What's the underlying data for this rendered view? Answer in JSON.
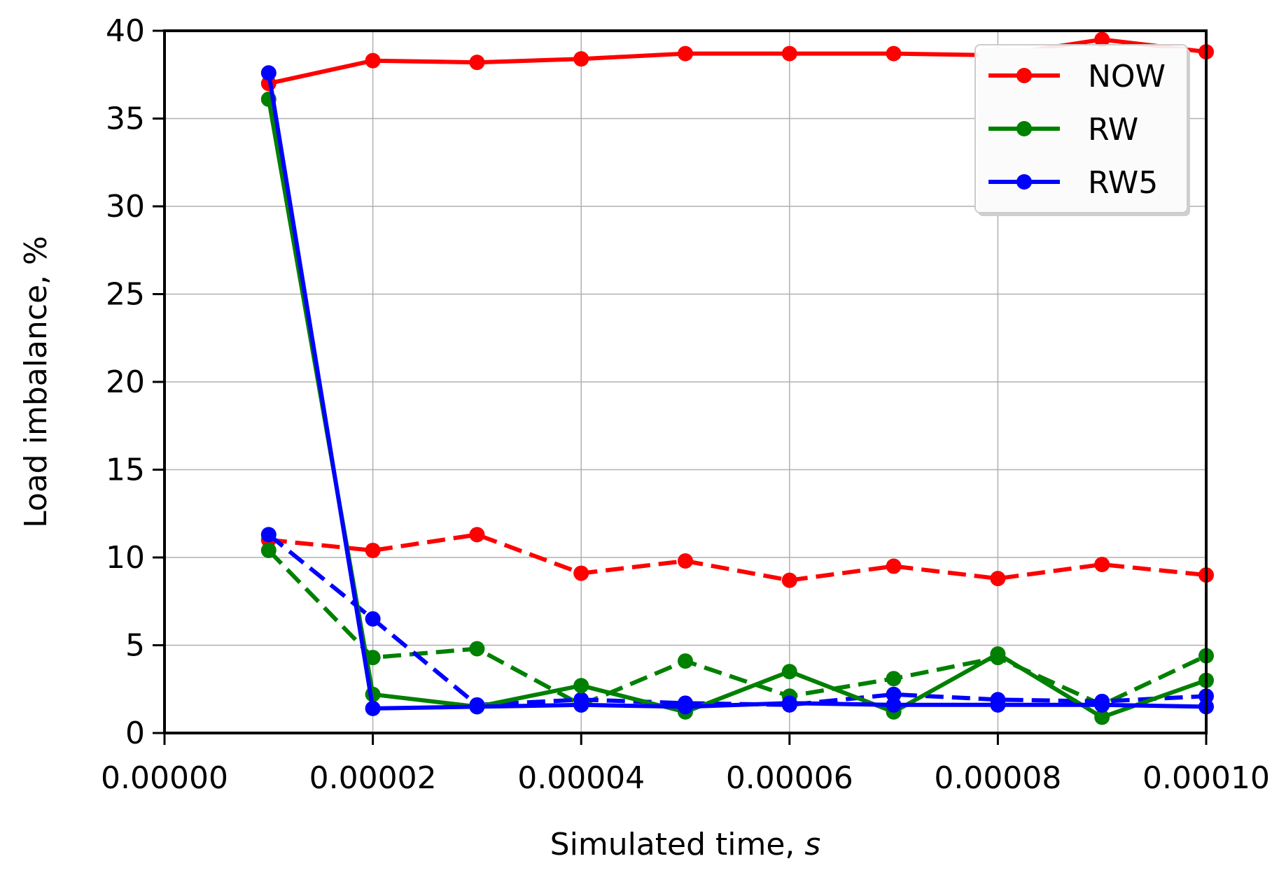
{
  "chart_data": {
    "type": "line",
    "xlabel": "Simulated time, ",
    "xlabel_italic": "s",
    "ylabel": "Load imbalance, %",
    "xlim": [
      0,
      0.0001
    ],
    "ylim": [
      0,
      40
    ],
    "grid": true,
    "legend_position": "top-right",
    "x_ticks": [
      "0.00000",
      "0.00002",
      "0.00004",
      "0.00006",
      "0.00008",
      "0.00010"
    ],
    "y_ticks": [
      "0",
      "5",
      "10",
      "15",
      "20",
      "25",
      "30",
      "35",
      "40"
    ],
    "x_tick_values": [
      0,
      2e-05,
      4e-05,
      6e-05,
      8e-05,
      0.0001
    ],
    "y_tick_values": [
      0,
      5,
      10,
      15,
      20,
      25,
      30,
      35,
      40
    ],
    "x": [
      1e-05,
      2e-05,
      3e-05,
      4e-05,
      5e-05,
      6e-05,
      7e-05,
      8e-05,
      9e-05,
      0.0001
    ],
    "series": [
      {
        "name": "NOW",
        "color": "#ff0000",
        "style": "solid",
        "in_legend": true,
        "values": [
          37.0,
          38.3,
          38.2,
          38.4,
          38.7,
          38.7,
          38.7,
          38.6,
          39.5,
          38.8
        ]
      },
      {
        "name": "RW",
        "color": "#008000",
        "style": "solid",
        "in_legend": true,
        "values": [
          36.1,
          2.2,
          1.5,
          2.7,
          1.2,
          3.5,
          1.2,
          4.5,
          0.9,
          3.0
        ]
      },
      {
        "name": "RW5",
        "color": "#0000ff",
        "style": "solid",
        "in_legend": true,
        "values": [
          37.6,
          1.4,
          1.5,
          1.6,
          1.5,
          1.7,
          1.6,
          1.6,
          1.6,
          1.5
        ]
      },
      {
        "color": "#ff0000",
        "style": "dashed",
        "in_legend": false,
        "values": [
          11.0,
          10.4,
          11.3,
          9.1,
          9.8,
          8.7,
          9.5,
          8.8,
          9.6,
          9.0
        ]
      },
      {
        "color": "#008000",
        "style": "dashed",
        "in_legend": false,
        "values": [
          10.4,
          4.3,
          4.8,
          1.6,
          4.1,
          2.1,
          3.1,
          4.3,
          1.6,
          4.4
        ]
      },
      {
        "color": "#0000ff",
        "style": "dashed",
        "in_legend": false,
        "values": [
          11.3,
          6.5,
          1.6,
          1.9,
          1.7,
          1.6,
          2.2,
          1.9,
          1.8,
          2.1
        ]
      }
    ]
  }
}
